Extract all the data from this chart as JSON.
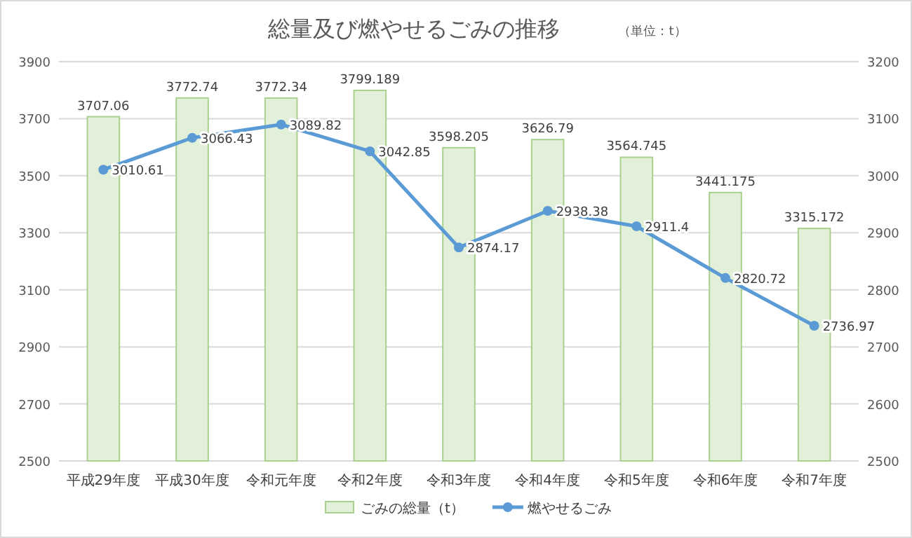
{
  "chart_data": {
    "type": "bar",
    "title": "総量及び燃やせるごみの推移",
    "subtitle": "（単位：t）",
    "categories": [
      "平成29年度",
      "平成30年度",
      "令和元年度",
      "令和2年度",
      "令和3年度",
      "令和4年度",
      "令和5年度",
      "令和6年度",
      "令和7年度"
    ],
    "series": [
      {
        "name": "ごみの総量（t）",
        "color": "#e2f0d9",
        "values": [
          3707.06,
          3772.74,
          3772.34,
          3799.189,
          3598.205,
          3626.79,
          3564.745,
          3441.175,
          3315.172
        ]
      },
      {
        "name": "燃やせるごみ",
        "type": "line",
        "axis": "y2",
        "color": "#5b9bd5",
        "marker": "circle",
        "values": [
          3010.61,
          3066.43,
          3089.82,
          3042.85,
          2874.17,
          2938.38,
          2911.4,
          2820.72,
          2736.97
        ]
      }
    ],
    "ylim": [
      2500,
      3900
    ],
    "yticks": [
      2500,
      2700,
      2900,
      3100,
      3300,
      3500,
      3700,
      3900
    ],
    "y2lim": [
      2500,
      3200
    ],
    "y2ticks": [
      2500,
      2600,
      2700,
      2800,
      2900,
      3000,
      3100,
      3200
    ],
    "grid": "y",
    "legend": "bottom",
    "data_labels": true
  }
}
